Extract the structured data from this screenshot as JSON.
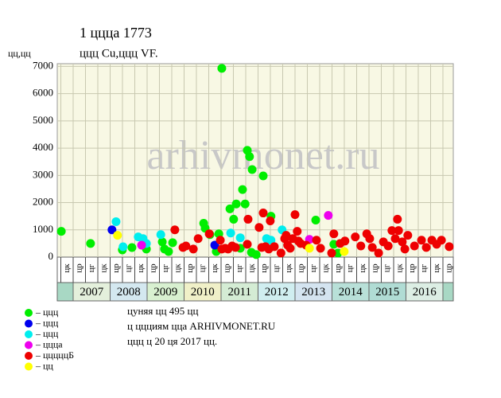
{
  "chart_data": {
    "type": "scatter",
    "title": "1 цццa 1773",
    "subtitle": "ццц Cu,ццц VF.",
    "y_label": "цц,цц",
    "watermark": "arhivmonet.ru",
    "notes": [
      "цуняя цц 495 цц",
      "ц ццциям цца ARHIVMONET.RU",
      "ццц ц 20 ця 2017 цц."
    ],
    "xlim": [
      2006.57,
      2017.28
    ],
    "ylim": [
      0,
      7100
    ],
    "yticks": [
      0,
      1000,
      2000,
      3000,
      4000,
      5000,
      6000,
      7000
    ],
    "xticks": [
      {
        "value": 2006.667,
        "label": "цк"
      },
      {
        "value": 2007.0,
        "label": "цр"
      },
      {
        "value": 2007.333,
        "label": "цг"
      },
      {
        "value": 2007.667,
        "label": "цк"
      },
      {
        "value": 2008.0,
        "label": "цр"
      },
      {
        "value": 2008.333,
        "label": "цг"
      },
      {
        "value": 2008.667,
        "label": "цк"
      },
      {
        "value": 2009.0,
        "label": "цр"
      },
      {
        "value": 2009.333,
        "label": "цг"
      },
      {
        "value": 2009.667,
        "label": "цк"
      },
      {
        "value": 2010.0,
        "label": "цр"
      },
      {
        "value": 2010.333,
        "label": "цг"
      },
      {
        "value": 2010.667,
        "label": "цк"
      },
      {
        "value": 2011.0,
        "label": "цр"
      },
      {
        "value": 2011.333,
        "label": "цг"
      },
      {
        "value": 2011.667,
        "label": "цк"
      },
      {
        "value": 2012.0,
        "label": "цр"
      },
      {
        "value": 2012.333,
        "label": "цг"
      },
      {
        "value": 2012.667,
        "label": "цк"
      },
      {
        "value": 2013.0,
        "label": "цр"
      },
      {
        "value": 2013.333,
        "label": "цг"
      },
      {
        "value": 2013.667,
        "label": "цк"
      },
      {
        "value": 2014.0,
        "label": "цр"
      },
      {
        "value": 2014.333,
        "label": "цг"
      },
      {
        "value": 2014.667,
        "label": "цк"
      },
      {
        "value": 2015.0,
        "label": "цр"
      },
      {
        "value": 2015.333,
        "label": "цг"
      },
      {
        "value": 2015.667,
        "label": "цк"
      },
      {
        "value": 2016.0,
        "label": "цр"
      },
      {
        "value": 2016.333,
        "label": "цг"
      },
      {
        "value": 2016.667,
        "label": "цк"
      },
      {
        "value": 2017.0,
        "label": "цр"
      }
    ],
    "year_ticks": [
      2007,
      2008,
      2009,
      2010,
      2011,
      2012,
      2013,
      2014,
      2015,
      2016
    ],
    "grid": true,
    "series": [
      {
        "name": "– ццц",
        "color": "#00ee00",
        "x": [
          2006.68,
          2007.47,
          2008.33,
          2008.59,
          2008.98,
          2009.41,
          2009.47,
          2009.58,
          2009.69,
          2010.53,
          2010.57,
          2010.7,
          2010.87,
          2010.94,
          2011.02,
          2011.24,
          2011.34,
          2011.41,
          2011.52,
          2011.58,
          2011.65,
          2011.71,
          2011.77,
          2011.84,
          2011.82,
          2011.95,
          2012.14,
          2012.35,
          2013.56,
          2014.05,
          2014.16
        ],
        "y": [
          945,
          500,
          265,
          350,
          295,
          560,
          295,
          205,
          530,
          1240,
          1060,
          825,
          205,
          855,
          6930,
          1770,
          1390,
          1950,
          325,
          2480,
          1950,
          3920,
          3690,
          3215,
          175,
          90,
          2980,
          1500,
          1360,
          470,
          150
        ]
      },
      {
        "name": "– ццц",
        "color": "#0000ee",
        "x": [
          2008.05,
          2010.83
        ],
        "y": [
          1000,
          440
        ]
      },
      {
        "name": "– ццц",
        "color": "#00eeee",
        "x": [
          2008.16,
          2008.35,
          2008.76,
          2008.89,
          2008.98,
          2009.37,
          2011.26,
          2011.52,
          2012.23,
          2012.35,
          2012.65
        ],
        "y": [
          1300,
          380,
          740,
          680,
          500,
          825,
          885,
          710,
          680,
          620,
          1000
        ]
      },
      {
        "name": "– цццa",
        "color": "#ee00ee",
        "x": [
          2008.85,
          2013.39,
          2013.9
        ],
        "y": [
          440,
          650,
          1530
        ]
      },
      {
        "name": "– цццццБ",
        "color": "#ee0000",
        "x": [
          2009.75,
          2009.97,
          2010.05,
          2010.25,
          2010.38,
          2010.68,
          2010.98,
          2011.02,
          2011.11,
          2011.19,
          2011.3,
          2011.39,
          2011.73,
          2011.71,
          2012.03,
          2012.14,
          2012.1,
          2012.2,
          2012.33,
          2012.29,
          2012.44,
          2012.62,
          2012.72,
          2012.76,
          2012.8,
          2012.87,
          2012.94,
          2013.0,
          2013.06,
          2013.09,
          2013.15,
          2013.3,
          2013.58,
          2013.69,
          2013.99,
          2014.05,
          2014.22,
          2014.35,
          2014.63,
          2014.78,
          2014.94,
          2015.02,
          2015.09,
          2015.26,
          2015.39,
          2015.52,
          2015.62,
          2015.71,
          2015.77,
          2015.8,
          2015.9,
          2015.97,
          2016.05,
          2016.23,
          2016.42,
          2016.55,
          2016.7,
          2016.83,
          2016.96,
          2017.17
        ],
        "y": [
          1000,
          355,
          410,
          295,
          680,
          855,
          620,
          295,
          325,
          295,
          410,
          355,
          1390,
          470,
          1090,
          1620,
          355,
          385,
          1330,
          295,
          385,
          150,
          680,
          800,
          440,
          325,
          680,
          1560,
          945,
          590,
          500,
          440,
          620,
          325,
          150,
          855,
          500,
          590,
          740,
          410,
          855,
          680,
          355,
          150,
          560,
          410,
          975,
          680,
          1390,
          975,
          560,
          295,
          800,
          410,
          620,
          355,
          620,
          470,
          620,
          385
        ]
      },
      {
        "name": "– цц",
        "color": "#ffff00",
        "x": [
          2008.2,
          2013.39,
          2014.33
        ],
        "y": [
          800,
          325,
          205
        ]
      }
    ]
  }
}
